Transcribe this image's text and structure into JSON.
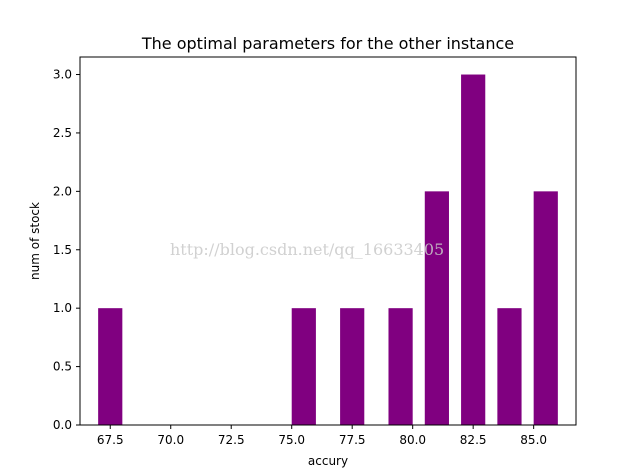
{
  "chart_data": {
    "type": "bar",
    "title": "The optimal parameters for the other instance",
    "xlabel": "accury",
    "ylabel": "num of stock",
    "x": [
      67.5,
      75.5,
      77.5,
      79.5,
      81.0,
      82.5,
      84.0,
      85.5
    ],
    "values": [
      1,
      1,
      1,
      1,
      2,
      3,
      1,
      2
    ],
    "bar_width": 1.0,
    "xlim": [
      66.25,
      86.75
    ],
    "ylim": [
      0,
      3.15
    ],
    "xticks": [
      "67.5",
      "70.0",
      "72.5",
      "75.0",
      "77.5",
      "80.0",
      "82.5",
      "85.0"
    ],
    "yticks": [
      "0.0",
      "0.5",
      "1.0",
      "1.5",
      "2.0",
      "2.5",
      "3.0"
    ],
    "bar_color": "#800080",
    "grid": false,
    "watermark": "http://blog.csdn.net/qq_16633405"
  }
}
